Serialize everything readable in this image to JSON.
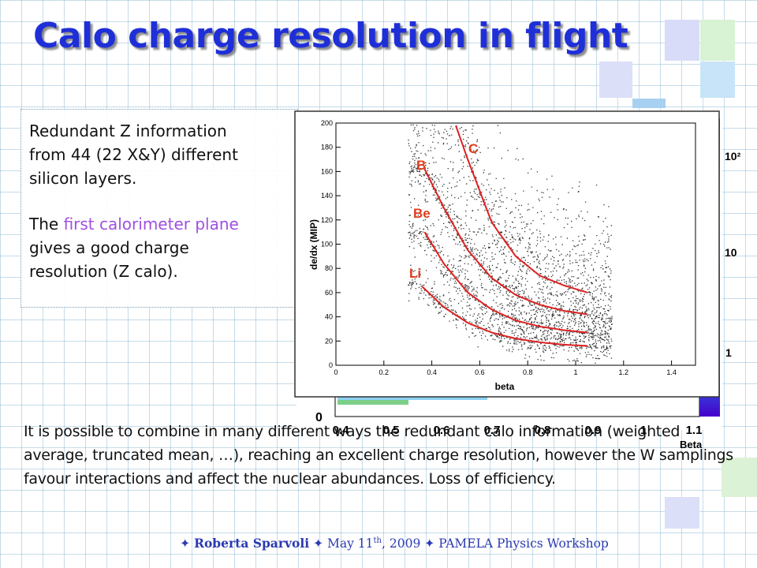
{
  "slide": {
    "title": "Calo charge resolution in flight",
    "textbox": {
      "line1": "Redundant Z information",
      "line2": "from 44 (22 X&Y) different",
      "line3": "silicon layers.",
      "p2_pre": "The ",
      "p2_highlight": "first calorimeter plane",
      "p2_line2": "gives a good charge",
      "p2_line3": "resolution (Z calo)."
    },
    "bottom_text": "It is possible to combine in many different ways the redundant calo information (weighted average, truncated mean, …), reaching an excellent charge resolution, however the W samplings favour interactions and affect the nuclear abundances. Loss of efficiency.",
    "footer": {
      "author": "Roberta Sparvoli",
      "date_pre": "May 11",
      "date_sup": "th",
      "date_post": ", 2009",
      "event": "PAMELA Physics Workshop",
      "separator": "✦"
    }
  },
  "colors": {
    "title": "#1f2fd8",
    "highlight": "#a050e0",
    "curve": "#dd2222",
    "curve_label": "#e03c1c",
    "footer": "#2a3ab0"
  },
  "chart_data": [
    {
      "type": "scatter",
      "description_role": "foreground plot",
      "xlabel": "beta",
      "ylabel": "de/dx (MIP)",
      "xlim": [
        0,
        1.5
      ],
      "ylim": [
        0,
        200
      ],
      "x_ticks": [
        "0",
        "0.2",
        "0.4",
        "0.6",
        "0.8",
        "1",
        "1.2",
        "1.4"
      ],
      "y_ticks": [
        "0",
        "20",
        "40",
        "60",
        "80",
        "100",
        "120",
        "140",
        "160",
        "180",
        "200"
      ],
      "grid": false,
      "point_color": "#000000",
      "series": [
        {
          "name": "Li",
          "x": [
            0.36,
            0.45,
            0.55,
            0.65,
            0.75,
            0.85,
            0.95,
            1.05
          ],
          "y": [
            65,
            48,
            35,
            27,
            22,
            19,
            17,
            16
          ]
        },
        {
          "name": "Be",
          "x": [
            0.37,
            0.45,
            0.55,
            0.65,
            0.75,
            0.85,
            0.95,
            1.05
          ],
          "y": [
            110,
            84,
            60,
            46,
            37,
            32,
            29,
            27
          ]
        },
        {
          "name": "B",
          "x": [
            0.37,
            0.45,
            0.55,
            0.65,
            0.75,
            0.85,
            0.95,
            1.05
          ],
          "y": [
            162,
            130,
            95,
            72,
            58,
            50,
            45,
            42
          ]
        },
        {
          "name": "C",
          "x": [
            0.5,
            0.55,
            0.65,
            0.75,
            0.85,
            0.95,
            1.05
          ],
          "y": [
            198,
            170,
            118,
            90,
            74,
            66,
            60
          ]
        }
      ]
    },
    {
      "type": "heatmap",
      "description_role": "background plot (partially hidden)",
      "xlabel": "Beta",
      "x_ticks": [
        "0.4",
        "0.5",
        "0.6",
        "0.7",
        "0.8",
        "0.9",
        "1",
        "1.1"
      ],
      "y_ticks": [
        "0"
      ],
      "color_scale_labels": [
        "1",
        "10",
        "10²"
      ]
    }
  ]
}
